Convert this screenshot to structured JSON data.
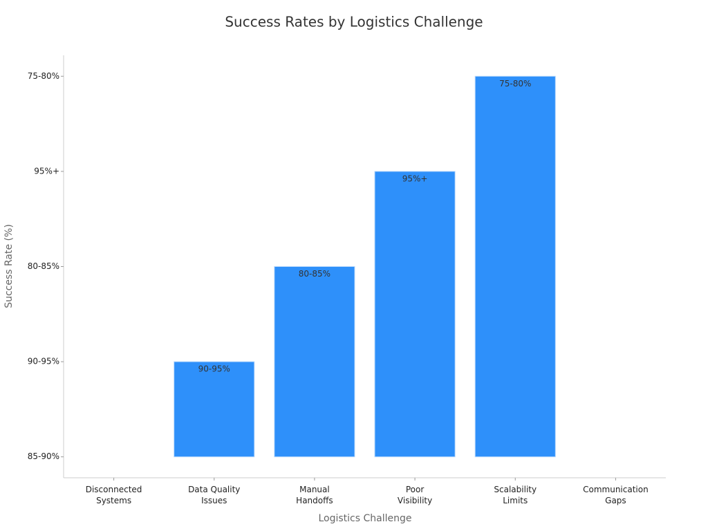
{
  "chart_data": {
    "type": "bar",
    "title": "Success Rates by Logistics Challenge",
    "x_label": "Logistics Challenge",
    "y_label": "Success Rate (%)",
    "categories": [
      "Disconnected\nSystems",
      "Data Quality\nIssues",
      "Manual\nHandoffs",
      "Poor\nVisibility",
      "Scalability\nLimits",
      "Communication\nGaps"
    ],
    "values": [
      0,
      1,
      2,
      3,
      4,
      0
    ],
    "value_labels": [
      null,
      "90-95%",
      "80-85%",
      "95%+",
      "75-80%",
      null
    ],
    "color": "#2e90fa",
    "ylim": [
      -0.22,
      4.22
    ],
    "yticks": [
      {
        "value": 0,
        "label": "85-90%"
      },
      {
        "value": 1,
        "label": "90-95%"
      },
      {
        "value": 2,
        "label": "80-85%"
      },
      {
        "value": 3,
        "label": "95%+"
      },
      {
        "value": 4,
        "label": "75-80%"
      }
    ],
    "grid": false
  }
}
